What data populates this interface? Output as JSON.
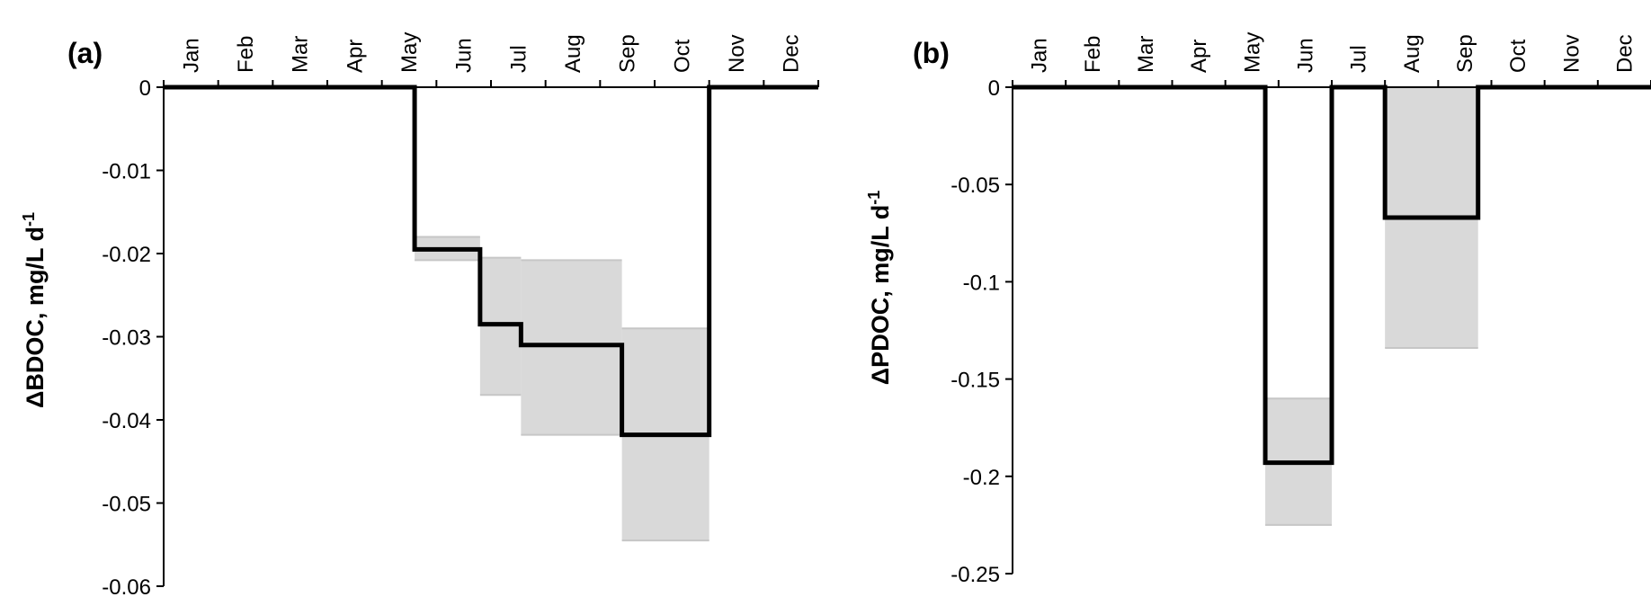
{
  "chart_data": [
    {
      "type": "line",
      "step": true,
      "panel_label": "(a)",
      "title": "",
      "xlabel": "",
      "ylabel": "ΔBDOC, mg/L d",
      "ylabel_superscript": "-1",
      "months": [
        "Jan",
        "Feb",
        "Mar",
        "Apr",
        "May",
        "Jun",
        "Jul",
        "Aug",
        "Sep",
        "Oct",
        "Nov",
        "Dec"
      ],
      "ylim": [
        -0.06,
        0
      ],
      "yticks": [
        0,
        -0.01,
        -0.02,
        -0.03,
        -0.04,
        -0.05,
        -0.06
      ],
      "ytick_labels": [
        "0",
        "-0.01",
        "-0.02",
        "-0.03",
        "-0.04",
        "-0.05",
        "-0.06"
      ],
      "grid": false,
      "series": [
        {
          "values": [
            0,
            0,
            0,
            0,
            0,
            -0.0195,
            -0.0285,
            -0.031,
            -0.031,
            -0.0418,
            0,
            0
          ],
          "segments": [
            {
              "start": 0,
              "end": 4.6,
              "value": 0,
              "low": null,
              "high": null
            },
            {
              "start": 4.6,
              "end": 5.8,
              "value": -0.0195,
              "low": -0.0208,
              "high": -0.018
            },
            {
              "start": 5.8,
              "end": 6.55,
              "value": -0.0285,
              "low": -0.037,
              "high": -0.0205
            },
            {
              "start": 6.55,
              "end": 8.4,
              "value": -0.031,
              "low": -0.0418,
              "high": -0.0208
            },
            {
              "start": 8.4,
              "end": 10.0,
              "value": -0.0418,
              "low": -0.0545,
              "high": -0.029
            },
            {
              "start": 10.0,
              "end": 12,
              "value": 0,
              "low": null,
              "high": null
            }
          ]
        }
      ],
      "colors": {
        "line": "#000000",
        "band": "#d9d9d9"
      }
    },
    {
      "type": "line",
      "step": true,
      "panel_label": "(b)",
      "title": "",
      "xlabel": "",
      "ylabel": "ΔPDOC, mg/L d",
      "ylabel_superscript": "-1",
      "months": [
        "Jan",
        "Feb",
        "Mar",
        "Apr",
        "May",
        "Jun",
        "Jul",
        "Aug",
        "Sep",
        "Oct",
        "Nov",
        "Dec"
      ],
      "ylim": [
        -0.25,
        0
      ],
      "yticks": [
        0,
        -0.05,
        -0.1,
        -0.15,
        -0.2,
        -0.25
      ],
      "ytick_labels": [
        "0",
        "-0.05",
        "-0.1",
        "-0.15",
        "-0.2",
        "-0.25"
      ],
      "grid": false,
      "series": [
        {
          "values": [
            0,
            0,
            0,
            0,
            0,
            -0.193,
            0,
            -0.067,
            -0.067,
            0,
            0,
            0
          ],
          "segments": [
            {
              "start": 0,
              "end": 4.75,
              "value": 0,
              "low": null,
              "high": null
            },
            {
              "start": 4.75,
              "end": 6.0,
              "value": -0.193,
              "low": -0.225,
              "high": -0.16
            },
            {
              "start": 6.0,
              "end": 7.0,
              "value": 0,
              "low": null,
              "high": null
            },
            {
              "start": 7.0,
              "end": 8.75,
              "value": -0.067,
              "low": -0.134,
              "high": 0
            },
            {
              "start": 8.75,
              "end": 12,
              "value": 0,
              "low": null,
              "high": null
            }
          ]
        }
      ],
      "colors": {
        "line": "#000000",
        "band": "#d9d9d9"
      }
    }
  ]
}
